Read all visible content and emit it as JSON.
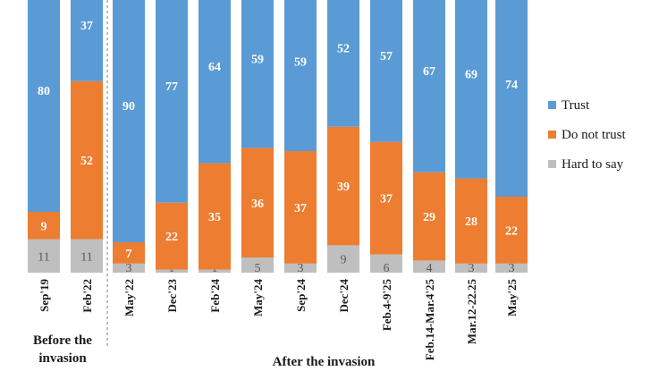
{
  "chart_data": {
    "type": "bar",
    "stacked": true,
    "categories": [
      "Sep'19",
      "Feb'22",
      "May'22",
      "Dec'23",
      "Feb'24",
      "May'24",
      "Sep'24",
      "Dec'24",
      "Feb.4-9'25",
      "Feb.14-Mar.4'25",
      "Mar.12-22.25",
      "May'25"
    ],
    "series": [
      {
        "name": "Hard to say",
        "color": "#bfbfbf",
        "values": [
          11,
          11,
          3,
          1,
          1,
          5,
          3,
          9,
          6,
          4,
          3,
          3
        ]
      },
      {
        "name": "Do not trust",
        "color": "#ed7d31",
        "values": [
          9,
          52,
          7,
          22,
          35,
          36,
          37,
          39,
          37,
          29,
          28,
          22
        ]
      },
      {
        "name": "Trust",
        "color": "#5b9bd5",
        "values": [
          80,
          37,
          90,
          77,
          64,
          59,
          59,
          52,
          57,
          67,
          69,
          74
        ]
      }
    ],
    "legend": [
      "Trust",
      "Do not trust",
      "Hard to say"
    ],
    "legend_position": "right",
    "groups": [
      {
        "label_lines": [
          "Before the",
          "invasion"
        ],
        "categories": [
          "Sep'19",
          "Feb'22"
        ]
      },
      {
        "label_lines": [
          "After the invasion"
        ],
        "categories": [
          "May'22",
          "Dec'23",
          "Feb'24",
          "May'24",
          "Sep'24",
          "Dec'24",
          "Feb.4-9'25",
          "Feb.14-Mar.4'25",
          "Mar.12-22.25",
          "May'25"
        ]
      }
    ],
    "title": "",
    "xlabel": "",
    "ylabel": "",
    "ylim": [
      0,
      100
    ]
  }
}
